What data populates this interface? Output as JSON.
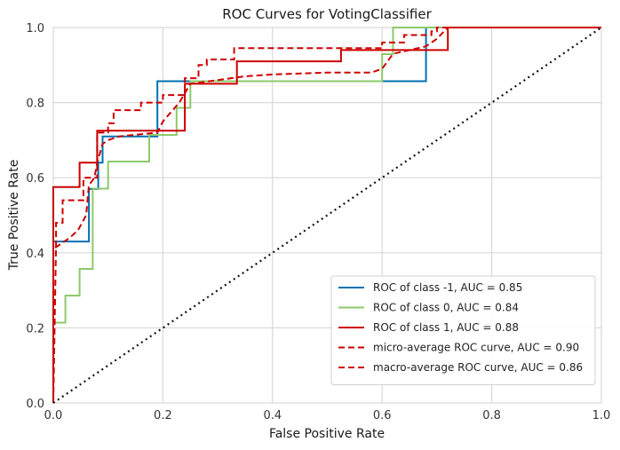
{
  "chart_data": {
    "type": "line",
    "title": "ROC Curves for VotingClassifier",
    "xlabel": "False Positive Rate",
    "ylabel": "True Positive Rate",
    "xlim": [
      0,
      1
    ],
    "ylim": [
      0,
      1
    ],
    "xticks": [
      "0.0",
      "0.2",
      "0.4",
      "0.6",
      "0.8",
      "1.0"
    ],
    "yticks": [
      "0.0",
      "0.2",
      "0.4",
      "0.6",
      "0.8",
      "1.0"
    ],
    "grid": true,
    "legend_position": "lower-right",
    "series": [
      {
        "name": "ROC of class -1, AUC = 0.85",
        "color": "#0072B2",
        "dash": "solid",
        "x": [
          0,
          0,
          0.065,
          0.065,
          0.082,
          0.082,
          0.09,
          0.09,
          0.19,
          0.19,
          0.68,
          0.68,
          1.0
        ],
        "y": [
          0,
          0.43,
          0.43,
          0.57,
          0.57,
          0.64,
          0.64,
          0.71,
          0.71,
          0.857,
          0.857,
          1.0,
          1.0
        ]
      },
      {
        "name": "ROC of class 0, AUC = 0.84",
        "color": "#8ec96a",
        "dash": "solid",
        "x": [
          0,
          0,
          0.022,
          0.022,
          0.048,
          0.048,
          0.072,
          0.072,
          0.083,
          0.083,
          0.1,
          0.1,
          0.175,
          0.175,
          0.225,
          0.225,
          0.25,
          0.25,
          0.6,
          0.6,
          0.62,
          0.62,
          1.0
        ],
        "y": [
          0,
          0.214,
          0.214,
          0.286,
          0.286,
          0.357,
          0.357,
          0.571,
          0.571,
          0.571,
          0.571,
          0.643,
          0.643,
          0.714,
          0.714,
          0.786,
          0.786,
          0.857,
          0.857,
          0.929,
          0.929,
          1.0,
          1.0
        ]
      },
      {
        "name": "ROC of class 1, AUC = 0.88",
        "color": "#cc0000",
        "dash": "solid",
        "x": [
          0,
          0,
          0.048,
          0.048,
          0.08,
          0.08,
          0.24,
          0.24,
          0.335,
          0.335,
          0.525,
          0.525,
          0.685,
          0.685,
          0.72,
          0.72,
          1.0
        ],
        "y": [
          0,
          0.575,
          0.575,
          0.64,
          0.64,
          0.725,
          0.725,
          0.85,
          0.85,
          0.91,
          0.91,
          0.94,
          0.94,
          0.94,
          0.94,
          1.0,
          1.0
        ]
      },
      {
        "name": "micro-average ROC curve, AUC = 0.90",
        "color": "#cc0000",
        "dash": "dashed",
        "x": [
          0,
          0.005,
          0.005,
          0.017,
          0.017,
          0.03,
          0.03,
          0.055,
          0.055,
          0.08,
          0.08,
          0.1,
          0.1,
          0.11,
          0.11,
          0.14,
          0.14,
          0.16,
          0.16,
          0.2,
          0.2,
          0.24,
          0.24,
          0.265,
          0.265,
          0.28,
          0.28,
          0.33,
          0.33,
          0.6,
          0.6,
          0.64,
          0.64,
          0.69,
          0.69,
          0.7,
          0.7,
          0.72,
          0.72,
          1.0
        ],
        "y": [
          0,
          0.425,
          0.48,
          0.48,
          0.54,
          0.54,
          0.54,
          0.54,
          0.6,
          0.6,
          0.72,
          0.72,
          0.745,
          0.745,
          0.78,
          0.78,
          0.78,
          0.78,
          0.8,
          0.8,
          0.82,
          0.82,
          0.865,
          0.865,
          0.9,
          0.9,
          0.915,
          0.915,
          0.945,
          0.945,
          0.96,
          0.96,
          0.98,
          0.98,
          0.99,
          0.99,
          1.0,
          1.0,
          1.0,
          1.0
        ]
      },
      {
        "name": "macro-average ROC curve, AUC = 0.86",
        "color": "#cc0000",
        "dash": "dashed",
        "x": [
          0,
          0.0,
          0.02,
          0.03,
          0.045,
          0.06,
          0.065,
          0.075,
          0.08,
          0.09,
          0.1,
          0.12,
          0.19,
          0.2,
          0.23,
          0.25,
          0.3,
          0.35,
          0.4,
          0.5,
          0.58,
          0.6,
          0.62,
          0.68,
          0.7,
          0.72,
          1.0
        ],
        "y": [
          0,
          0.41,
          0.43,
          0.44,
          0.46,
          0.5,
          0.58,
          0.6,
          0.64,
          0.69,
          0.7,
          0.71,
          0.72,
          0.75,
          0.8,
          0.85,
          0.86,
          0.87,
          0.875,
          0.88,
          0.88,
          0.89,
          0.93,
          0.95,
          0.97,
          1.0,
          1.0
        ]
      },
      {
        "name": "",
        "color": "#111111",
        "dash": "dotted",
        "x": [
          0,
          1
        ],
        "y": [
          0,
          1
        ]
      }
    ]
  }
}
